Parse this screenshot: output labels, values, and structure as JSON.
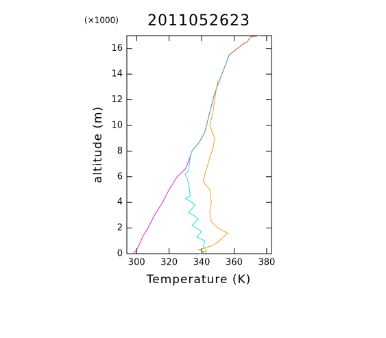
{
  "chart_data": {
    "type": "line",
    "title": "2011052623",
    "y_multiplier": "(×1000)",
    "x_label": "Temperature (K)",
    "y_label": "altitude (m)",
    "xlim": [
      294,
      383
    ],
    "xticks": [
      300,
      320,
      340,
      360,
      380
    ],
    "ylim": [
      0,
      17
    ],
    "yticks": [
      0,
      2,
      4,
      6,
      8,
      10,
      12,
      14,
      16
    ],
    "series": [
      {
        "color": "#e020c8",
        "x": [
          298,
          300,
          302,
          304,
          307,
          311,
          316,
          320,
          323,
          325,
          330,
          332,
          334
        ],
        "values": [
          0,
          0.3,
          0.8,
          1.4,
          2,
          3,
          4,
          5,
          5.6,
          6,
          6.6,
          7.2,
          8
        ]
      },
      {
        "color": "#4a7fc0",
        "x": [
          334,
          338,
          340,
          342,
          345,
          348,
          351,
          354,
          357
        ],
        "values": [
          8,
          8.6,
          9,
          9.5,
          11,
          12.5,
          13.5,
          14.5,
          15.5
        ]
      },
      {
        "color": "#b06040",
        "x": [
          357,
          360,
          362,
          366,
          368,
          370,
          376
        ],
        "values": [
          15.5,
          15.8,
          16,
          16.4,
          16.5,
          16.9,
          17
        ]
      },
      {
        "color": "#20e0d0",
        "x": [
          334,
          333,
          332,
          330,
          332,
          333,
          330,
          334,
          336,
          332,
          335,
          338,
          334,
          337,
          340,
          337,
          342,
          341,
          343,
          339
        ],
        "values": [
          8,
          7.5,
          6.5,
          6.2,
          5.5,
          4.5,
          4.3,
          4,
          3.8,
          3.2,
          3,
          2.7,
          2.2,
          2,
          1.7,
          1.3,
          1,
          0.6,
          0.2,
          0
        ]
      },
      {
        "color": "#f0a020",
        "x": [
          343,
          338,
          346,
          350,
          356,
          350,
          346,
          345,
          346,
          345,
          341,
          342,
          344,
          345,
          347,
          348,
          345,
          347,
          348,
          350
        ],
        "values": [
          0.1,
          0.3,
          0.6,
          0.9,
          1.6,
          2,
          2.5,
          3.2,
          4,
          5,
          5.6,
          6.2,
          7,
          7.5,
          8.2,
          9,
          10,
          11,
          12,
          13.5
        ]
      }
    ]
  }
}
